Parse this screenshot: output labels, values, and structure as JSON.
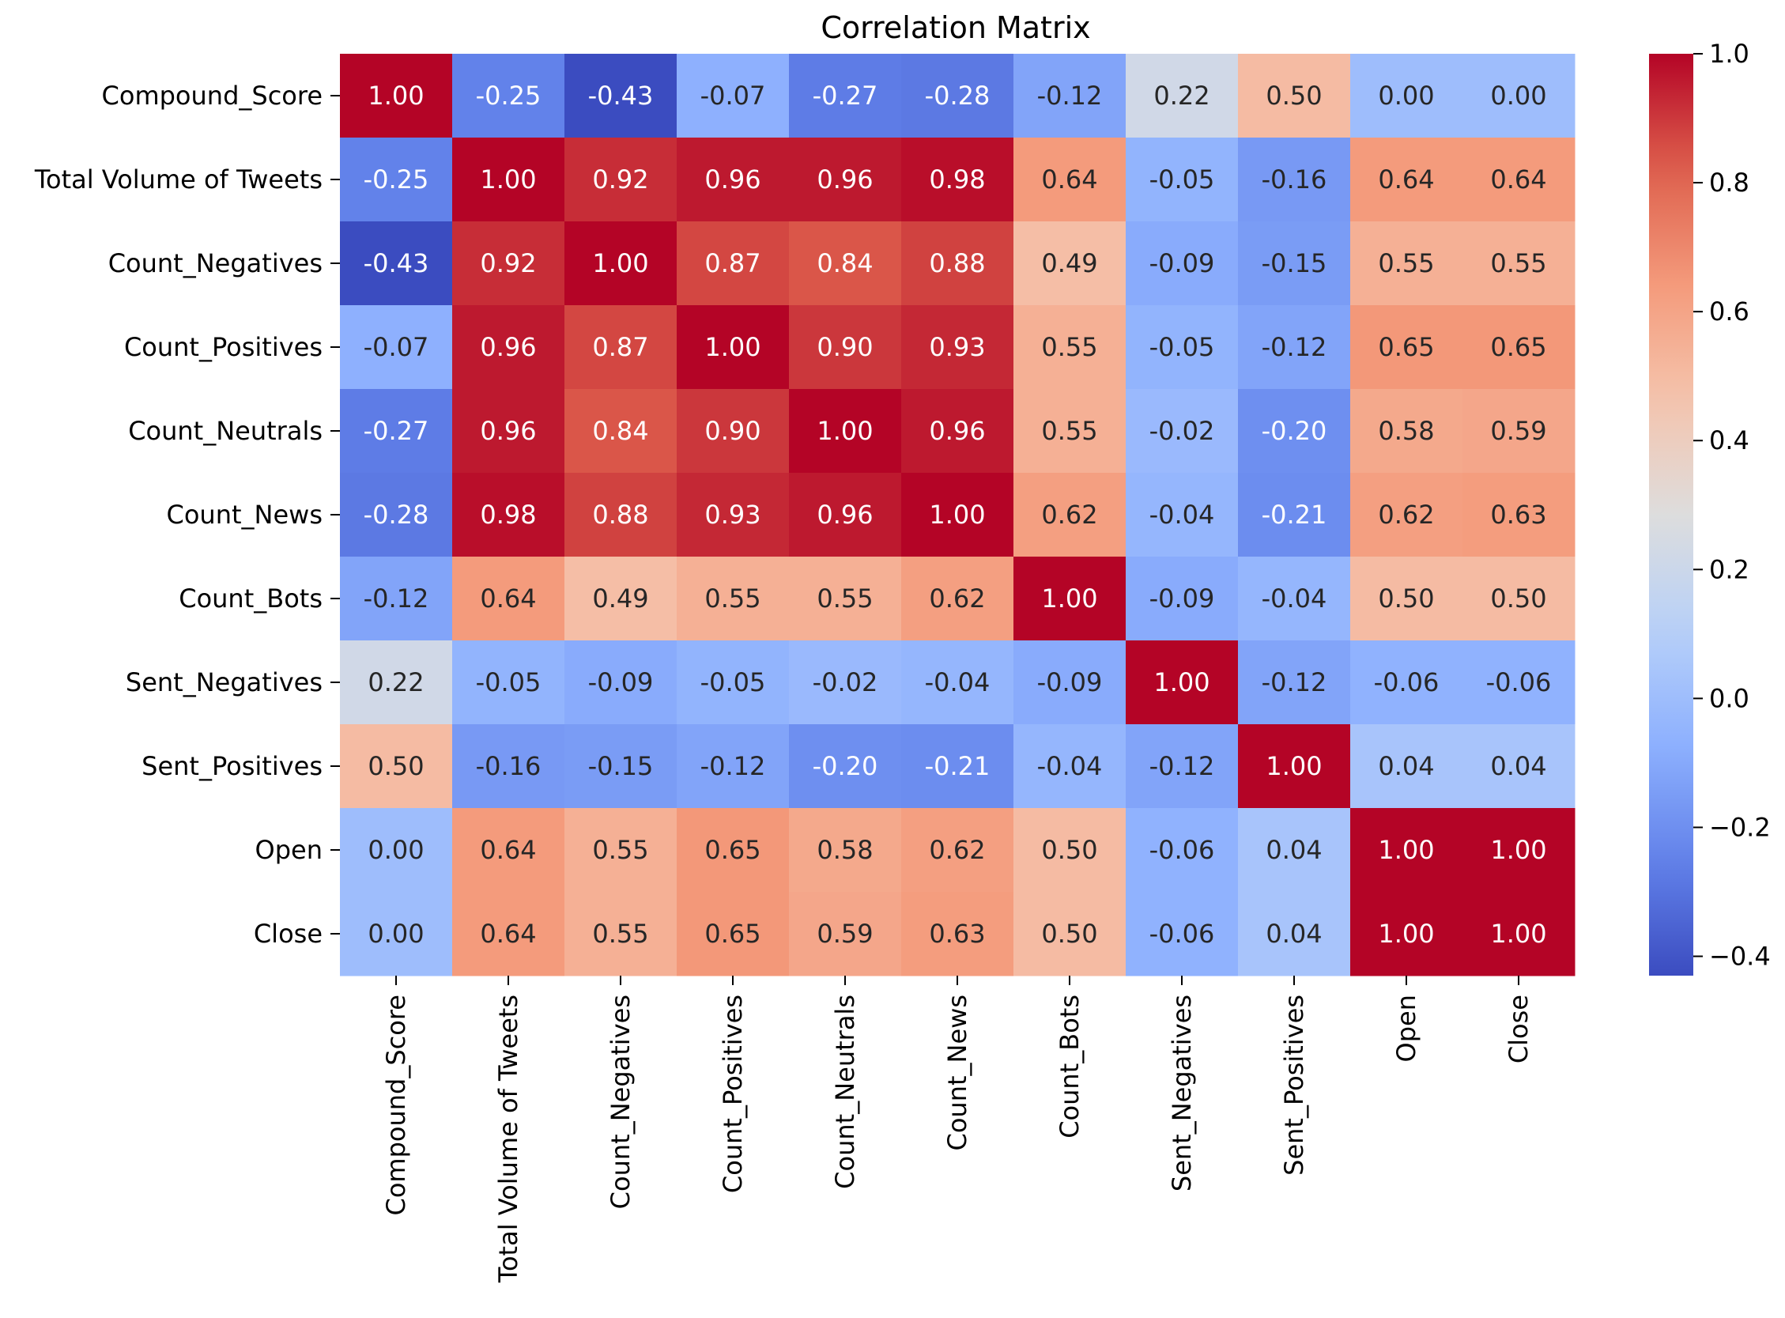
{
  "chart_data": {
    "type": "heatmap",
    "title": "Correlation Matrix",
    "xlabel": "",
    "ylabel": "",
    "labels": [
      "Compound_Score",
      "Total Volume of Tweets",
      "Count_Negatives",
      "Count_Positives",
      "Count_Neutrals",
      "Count_News",
      "Count_Bots",
      "Sent_Negatives",
      "Sent_Positives",
      "Open",
      "Close"
    ],
    "values": [
      [
        1.0,
        -0.25,
        -0.43,
        -0.07,
        -0.27,
        -0.28,
        -0.12,
        0.22,
        0.5,
        0.0,
        0.0
      ],
      [
        -0.25,
        1.0,
        0.92,
        0.96,
        0.96,
        0.98,
        0.64,
        -0.05,
        -0.16,
        0.64,
        0.64
      ],
      [
        -0.43,
        0.92,
        1.0,
        0.87,
        0.84,
        0.88,
        0.49,
        -0.09,
        -0.15,
        0.55,
        0.55
      ],
      [
        -0.07,
        0.96,
        0.87,
        1.0,
        0.9,
        0.93,
        0.55,
        -0.05,
        -0.12,
        0.65,
        0.65
      ],
      [
        -0.27,
        0.96,
        0.84,
        0.9,
        1.0,
        0.96,
        0.55,
        -0.02,
        -0.2,
        0.58,
        0.59
      ],
      [
        -0.28,
        0.98,
        0.88,
        0.93,
        0.96,
        1.0,
        0.62,
        -0.04,
        -0.21,
        0.62,
        0.63
      ],
      [
        -0.12,
        0.64,
        0.49,
        0.55,
        0.55,
        0.62,
        1.0,
        -0.09,
        -0.04,
        0.5,
        0.5
      ],
      [
        0.22,
        -0.05,
        -0.09,
        -0.05,
        -0.02,
        -0.04,
        -0.09,
        1.0,
        -0.12,
        -0.06,
        -0.06
      ],
      [
        0.5,
        -0.16,
        -0.15,
        -0.12,
        -0.2,
        -0.21,
        -0.04,
        -0.12,
        1.0,
        0.04,
        0.04
      ],
      [
        0.0,
        0.64,
        0.55,
        0.65,
        0.58,
        0.62,
        0.5,
        -0.06,
        0.04,
        1.0,
        1.0
      ],
      [
        0.0,
        0.64,
        0.55,
        0.65,
        0.59,
        0.63,
        0.5,
        -0.06,
        0.04,
        1.0,
        1.0
      ]
    ],
    "value_format": "0.00",
    "colormap": "coolwarm",
    "vmin": -0.43,
    "vmax": 1.0,
    "colorbar": {
      "ticks": [
        1.0,
        0.8,
        0.6,
        0.4,
        0.2,
        0.0,
        -0.2,
        -0.4
      ],
      "tick_labels": [
        "1.0",
        "0.8",
        "0.6",
        "0.4",
        "0.2",
        "0.0",
        "−0.2",
        "−0.4"
      ],
      "placement": "right"
    }
  }
}
